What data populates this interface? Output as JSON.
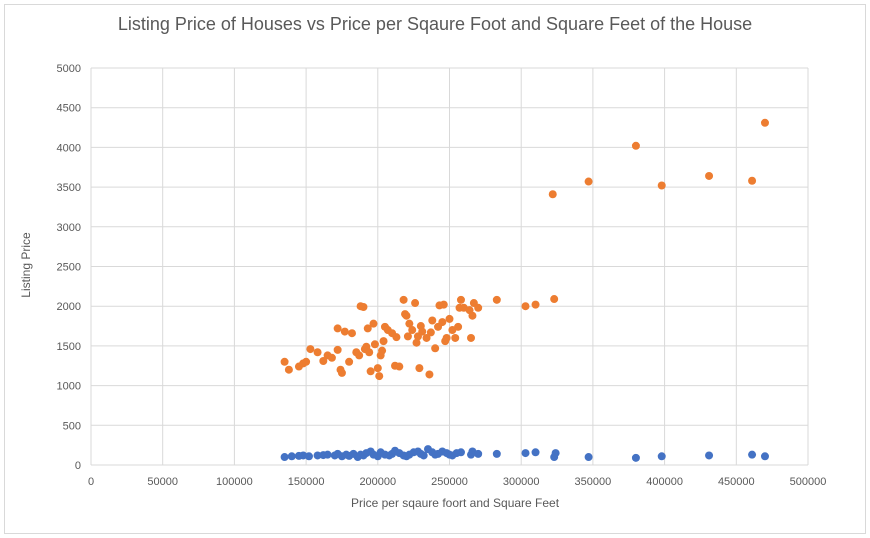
{
  "chart_data": {
    "type": "scatter",
    "title": "Listing Price of Houses vs Price per Sqaure Foot and Square Feet of the House",
    "xlabel": "Price per sqaure foort and Square Feet",
    "ylabel": "Listing Price",
    "xlim": [
      0,
      500000
    ],
    "ylim": [
      0,
      5000
    ],
    "xticks": [
      "0",
      "50000",
      "100000",
      "150000",
      "200000",
      "250000",
      "300000",
      "350000",
      "400000",
      "450000",
      "500000"
    ],
    "yticks": [
      "0",
      "500",
      "1000",
      "1500",
      "2000",
      "2500",
      "3000",
      "3500",
      "4000",
      "4500",
      "5000"
    ],
    "grid": true,
    "legend": "none",
    "series": [
      {
        "color": "#4472c4",
        "points": [
          [
            135000,
            100
          ],
          [
            140000,
            110
          ],
          [
            145000,
            115
          ],
          [
            148000,
            120
          ],
          [
            152000,
            110
          ],
          [
            158000,
            120
          ],
          [
            162000,
            125
          ],
          [
            165000,
            130
          ],
          [
            170000,
            120
          ],
          [
            172000,
            140
          ],
          [
            175000,
            110
          ],
          [
            178000,
            130
          ],
          [
            180000,
            115
          ],
          [
            183000,
            140
          ],
          [
            186000,
            100
          ],
          [
            188000,
            130
          ],
          [
            190000,
            120
          ],
          [
            192000,
            150
          ],
          [
            195000,
            170
          ],
          [
            197000,
            130
          ],
          [
            200000,
            110
          ],
          [
            202000,
            160
          ],
          [
            205000,
            130
          ],
          [
            208000,
            120
          ],
          [
            210000,
            140
          ],
          [
            212000,
            180
          ],
          [
            215000,
            150
          ],
          [
            218000,
            120
          ],
          [
            220000,
            110
          ],
          [
            222000,
            130
          ],
          [
            225000,
            160
          ],
          [
            228000,
            170
          ],
          [
            230000,
            140
          ],
          [
            232000,
            120
          ],
          [
            235000,
            200
          ],
          [
            238000,
            160
          ],
          [
            240000,
            130
          ],
          [
            242000,
            140
          ],
          [
            245000,
            170
          ],
          [
            248000,
            150
          ],
          [
            250000,
            130
          ],
          [
            252000,
            120
          ],
          [
            255000,
            150
          ],
          [
            258000,
            160
          ],
          [
            265000,
            130
          ],
          [
            266000,
            170
          ],
          [
            270000,
            140
          ],
          [
            283000,
            140
          ],
          [
            303000,
            150
          ],
          [
            310000,
            160
          ],
          [
            323000,
            100
          ],
          [
            324000,
            150
          ],
          [
            347000,
            100
          ],
          [
            380000,
            90
          ],
          [
            398000,
            110
          ],
          [
            431000,
            120
          ],
          [
            461000,
            130
          ],
          [
            470000,
            110
          ]
        ]
      },
      {
        "color": "#ed7d31",
        "points": [
          [
            135000,
            1300
          ],
          [
            138000,
            1200
          ],
          [
            145000,
            1240
          ],
          [
            148000,
            1280
          ],
          [
            150000,
            1300
          ],
          [
            153000,
            1460
          ],
          [
            158000,
            1420
          ],
          [
            162000,
            1310
          ],
          [
            165000,
            1380
          ],
          [
            168000,
            1350
          ],
          [
            172000,
            1450
          ],
          [
            172000,
            1720
          ],
          [
            174000,
            1200
          ],
          [
            175000,
            1160
          ],
          [
            177000,
            1680
          ],
          [
            180000,
            1300
          ],
          [
            182000,
            1660
          ],
          [
            185000,
            1420
          ],
          [
            187000,
            1380
          ],
          [
            188000,
            2000
          ],
          [
            190000,
            1990
          ],
          [
            191000,
            1460
          ],
          [
            192000,
            1490
          ],
          [
            193000,
            1720
          ],
          [
            194000,
            1420
          ],
          [
            195000,
            1180
          ],
          [
            197000,
            1780
          ],
          [
            198000,
            1520
          ],
          [
            200000,
            1220
          ],
          [
            201000,
            1120
          ],
          [
            202000,
            1380
          ],
          [
            203000,
            1440
          ],
          [
            204000,
            1560
          ],
          [
            205000,
            1740
          ],
          [
            207000,
            1700
          ],
          [
            210000,
            1660
          ],
          [
            212000,
            1250
          ],
          [
            213000,
            1610
          ],
          [
            215000,
            1240
          ],
          [
            218000,
            2080
          ],
          [
            219000,
            1900
          ],
          [
            220000,
            1880
          ],
          [
            221000,
            1620
          ],
          [
            222000,
            1780
          ],
          [
            224000,
            1700
          ],
          [
            226000,
            2040
          ],
          [
            227000,
            1540
          ],
          [
            228000,
            1620
          ],
          [
            229000,
            1220
          ],
          [
            230000,
            1750
          ],
          [
            231000,
            1680
          ],
          [
            234000,
            1600
          ],
          [
            236000,
            1140
          ],
          [
            237000,
            1670
          ],
          [
            238000,
            1820
          ],
          [
            240000,
            1470
          ],
          [
            242000,
            1740
          ],
          [
            243000,
            2010
          ],
          [
            245000,
            1800
          ],
          [
            246000,
            2020
          ],
          [
            247000,
            1560
          ],
          [
            248000,
            1600
          ],
          [
            250000,
            1840
          ],
          [
            252000,
            1700
          ],
          [
            254000,
            1600
          ],
          [
            256000,
            1740
          ],
          [
            257000,
            1980
          ],
          [
            258000,
            2080
          ],
          [
            260000,
            1980
          ],
          [
            264000,
            1950
          ],
          [
            265000,
            1600
          ],
          [
            266000,
            1880
          ],
          [
            267000,
            2040
          ],
          [
            270000,
            1980
          ],
          [
            283000,
            2080
          ],
          [
            303000,
            2000
          ],
          [
            310000,
            2020
          ],
          [
            323000,
            2090
          ],
          [
            322000,
            3410
          ],
          [
            347000,
            3570
          ],
          [
            380000,
            4020
          ],
          [
            398000,
            3520
          ],
          [
            431000,
            3640
          ],
          [
            461000,
            3580
          ],
          [
            470000,
            4310
          ]
        ]
      }
    ]
  }
}
